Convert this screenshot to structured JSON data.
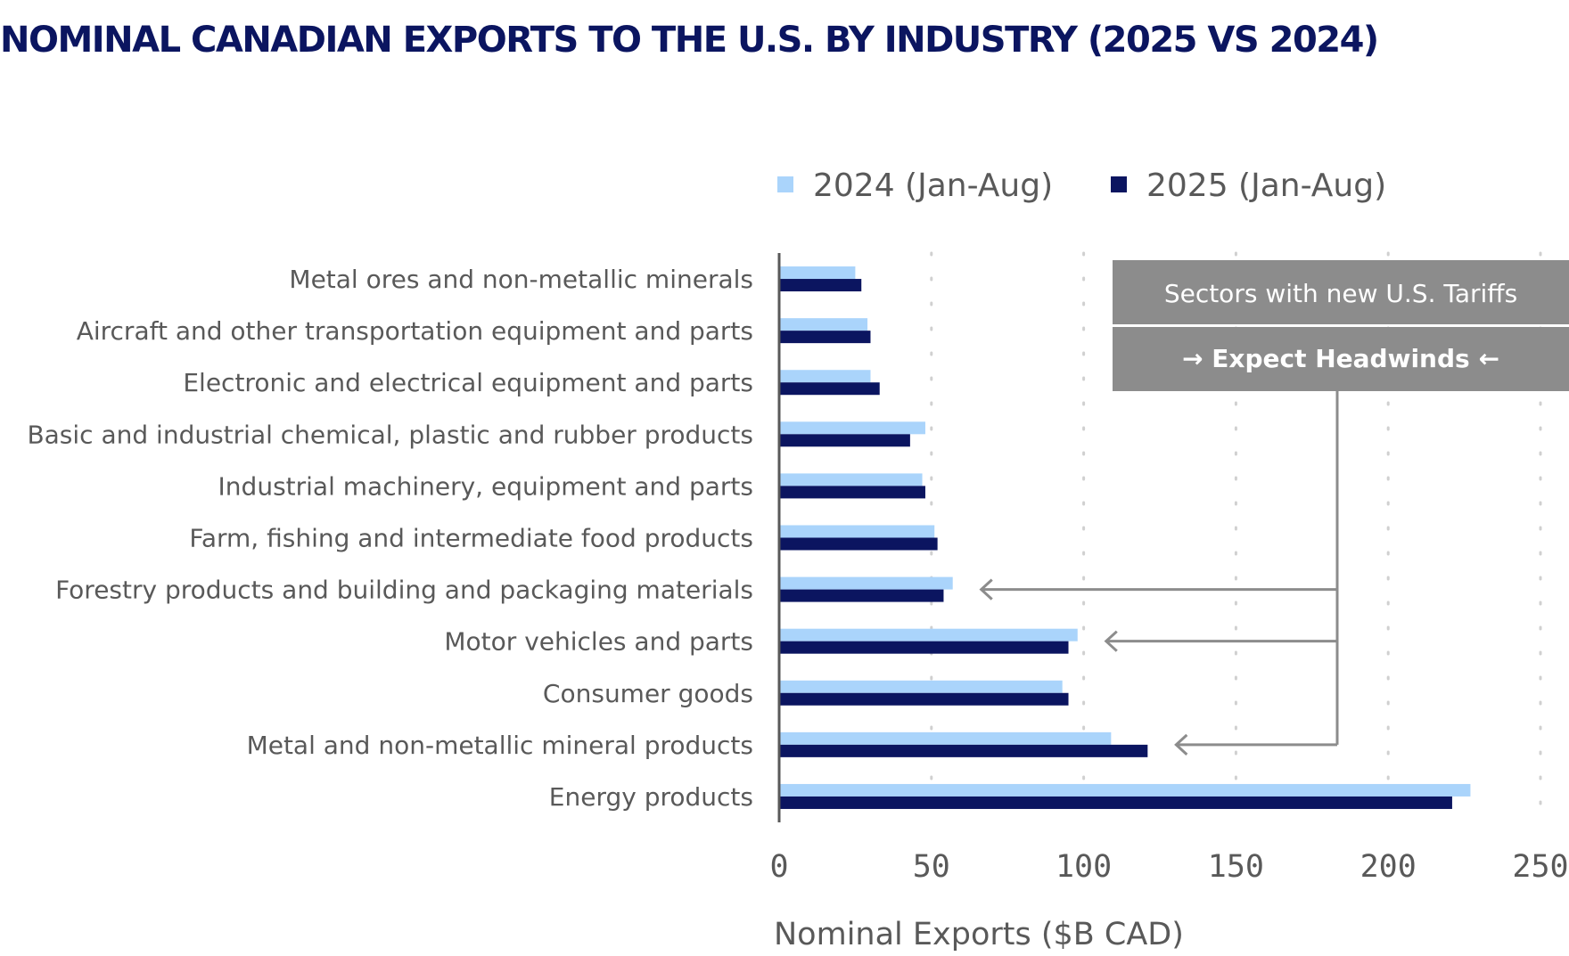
{
  "chart_data": {
    "type": "bar",
    "orientation": "horizontal",
    "title": "NOMINAL CANADIAN EXPORTS TO THE U.S. BY INDUSTRY (2025 VS 2024)",
    "xlabel": "Nominal Exports ($B CAD)",
    "ylabel": "",
    "xlim": [
      0,
      250
    ],
    "xticks": [
      0,
      50,
      100,
      150,
      200,
      250
    ],
    "grid": "vertical dotted",
    "legend_position": "top",
    "categories": [
      "Metal ores and non-metallic minerals",
      "Aircraft and other transportation equipment and parts",
      "Electronic and electrical equipment and parts",
      "Basic and industrial chemical, plastic and rubber products",
      "Industrial machinery, equipment and parts",
      "Farm, fishing and intermediate food products",
      "Forestry products and building and packaging materials",
      "Motor vehicles and parts",
      "Consumer goods",
      "Metal and non-metallic mineral products",
      "Energy products"
    ],
    "series": [
      {
        "name": "2024 (Jan-Aug)",
        "color": "#aad4fb",
        "values": [
          25,
          29,
          30,
          48,
          47,
          51,
          57,
          98,
          93,
          109,
          227
        ]
      },
      {
        "name": "2025 (Jan-Aug)",
        "color": "#0b1560",
        "values": [
          27,
          30,
          33,
          43,
          48,
          52,
          54,
          95,
          95,
          121,
          221
        ]
      }
    ],
    "annotation": {
      "line1": "Sectors with new U.S. Tariffs",
      "line2": "Expect Headwinds",
      "arrow_right": "→",
      "arrow_left": "←",
      "box_color": "#8c8c8c",
      "arrow_color": "#8c8c8c",
      "arrow_targets": [
        "Forestry products and building and packaging materials",
        "Motor vehicles and parts",
        "Metal and non-metallic mineral products"
      ]
    }
  }
}
